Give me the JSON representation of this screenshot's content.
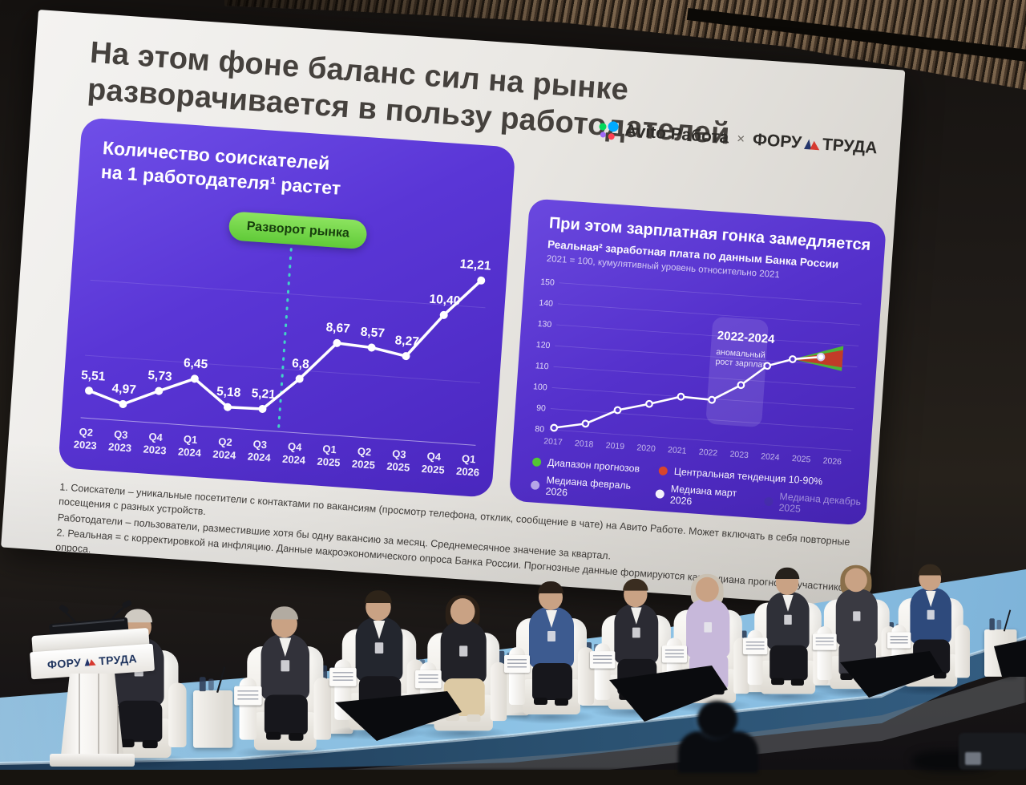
{
  "slide": {
    "title_line1": "На этом фоне баланс сил на рынке",
    "title_line2": "разворачивается в пользу работодателей",
    "logo": {
      "avito": "Avito Работа",
      "cross": "×",
      "forum_left": "ФОРУ",
      "forum_right": "ТРУДА"
    },
    "footnotes": [
      "1. Соискатели – уникальные посетители с контактами по вакансиям (просмотр телефона, отклик, сообщение в чате) на Авито Работе. Может включать в себя повторные посещения с разных устройств.",
      "Работодатели – пользователи, разместившие хотя бы одну вакансию за месяц. Среднемесячное значение за квартал.",
      "2. Реальная = с корректировкой на инфляцию. Данные макроэкономического опроса Банка России. Прогнозные данные формируются как медиана прогнозов участников опроса."
    ]
  },
  "left_card": {
    "title_line1": "Количество соискателей",
    "title_line2": "на 1 работодателя¹ растет",
    "annotation": "Разворот рынка"
  },
  "right_card": {
    "title": "При этом зарплатная гонка замедляется",
    "subtitle": "Реальная² заработная плата по данным Банка России",
    "note": "2021 = 100, кумулятивный уровень относительно 2021",
    "highlight_label": "2022-2024",
    "highlight_sub1": "аномальный",
    "highlight_sub2": "рост зарплат"
  },
  "stage": {
    "lectern_left": "ФОРУ",
    "lectern_right": "ТРУДА"
  },
  "chart_data": [
    {
      "type": "line",
      "title": "Количество соискателей на 1 работодателя растет",
      "annotation": "Разворот рынка",
      "x_quarters": [
        "Q2",
        "Q3",
        "Q4",
        "Q1",
        "Q2",
        "Q3",
        "Q4",
        "Q1",
        "Q2",
        "Q3",
        "Q4",
        "Q1"
      ],
      "x_years": [
        "2023",
        "2023",
        "2023",
        "2024",
        "2024",
        "2024",
        "2024",
        "2025",
        "2025",
        "2025",
        "2025",
        "2026"
      ],
      "values": [
        5.51,
        4.97,
        5.73,
        6.45,
        5.18,
        5.21,
        6.8,
        8.67,
        8.57,
        8.27,
        10.4,
        12.21
      ],
      "point_labels": [
        "5,51",
        "4,97",
        "5,73",
        "6,45",
        "5,18",
        "5,21",
        "6,8",
        "8,67",
        "8,57",
        "8,27",
        "10,40",
        "12,21"
      ],
      "divider_between": [
        "Q3 2024",
        "Q4 2024"
      ],
      "line_color": "#ffffff",
      "divider_color": "#41d3c6",
      "ylim": [
        4,
        13.5
      ],
      "grid": "faint horizontal"
    },
    {
      "type": "line",
      "title": "При этом зарплатная гонка замедляется",
      "subtitle": "Реальная заработная плата по данным Банка России, 2021 = 100, кумулятивный уровень относительно 2021",
      "yticks": [
        150,
        140,
        130,
        120,
        110,
        100,
        90,
        80
      ],
      "ylim": [
        78,
        152
      ],
      "xticks": [
        "2017",
        "2018",
        "2019",
        "2020",
        "2021",
        "2022",
        "2023",
        "2024",
        "2025",
        "2026"
      ],
      "points": [
        {
          "x": 2017,
          "y": 81
        },
        {
          "x": 2018,
          "y": 84
        },
        {
          "x": 2019,
          "y": 91.5
        },
        {
          "x": 2020,
          "y": 95.5
        },
        {
          "x": 2021,
          "y": 100
        },
        {
          "x": 2022,
          "y": 99.5
        },
        {
          "x": 2022.9,
          "y": 107.5
        },
        {
          "x": 2023.7,
          "y": 117.5
        },
        {
          "x": 2024.5,
          "y": 121.5
        }
      ],
      "median_point": {
        "x": 2025.4,
        "y": 123.5,
        "label": "Медиана март 2026"
      },
      "highlight": {
        "label": "2022-2024",
        "sublabel": "аномальный рост зарплат",
        "x_from": 2021.85,
        "x_to": 2023.65
      },
      "fan": {
        "x_from": 2024.5,
        "y_from": 121.5,
        "x_to": 2026.1,
        "outer_range": [
          117.5,
          129.5
        ],
        "inner_range": [
          119.2,
          127.5
        ],
        "outer_color": "#4cb33a",
        "inner_color": "#c23b28"
      },
      "line_color": "#ffffff",
      "legend_rows": [
        [
          {
            "label": "Диапазон прогнозов",
            "color": "#53c636"
          },
          {
            "label": "Центральная тенденция 10-90%",
            "color": "#d8452c"
          }
        ],
        [
          {
            "label": "Медиана февраль 2026",
            "color": "#b6a6e8"
          },
          {
            "label": "Медиана март 2026",
            "color": "#f5f3fc"
          },
          {
            "label": "Медиана декабрь 2025",
            "color": "#4233a0",
            "dim": true
          }
        ]
      ]
    }
  ]
}
